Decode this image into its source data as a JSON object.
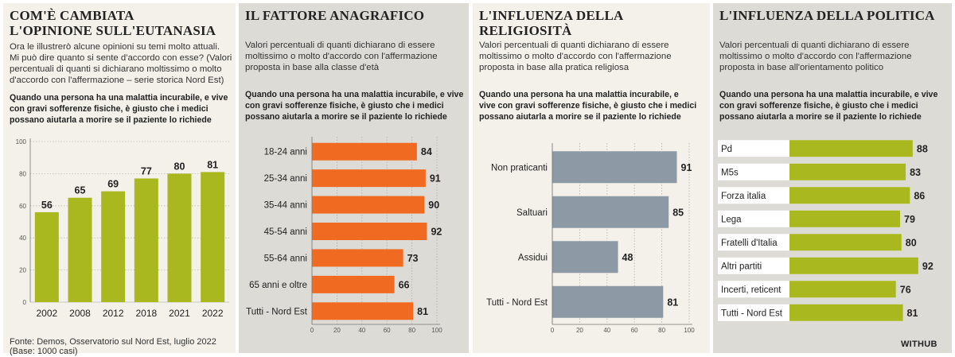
{
  "panel1": {
    "title_line1": "COM'È CAMBIATA",
    "title_line2": "L'OPINIONE SULL'EUTANASIA",
    "intro_line1": "Ora le illustrerò alcune opinioni su temi molto attuali.",
    "intro_line2": "Mi può dire quanto si sente d'accordo con esse? (Valori",
    "intro_line3": "percentuali di quanti si dichiarano moltissimo o molto",
    "intro_line4": "d'accordo con l'affermazione – serie storica Nord Est)",
    "question_line1": "Quando una persona ha una malattia incurabile, e vive",
    "question_line2": "con gravi sofferenze fisiche, è giusto che i medici",
    "question_line3": "possano aiutarla a morire se il paziente lo richiede"
  },
  "panel2": {
    "title": "IL FATTORE ANAGRAFICO",
    "intro_line1": "Valori percentuali di quanti dichiarano di essere",
    "intro_line2": "moltissimo o molto d'accordo con l'affermazione",
    "intro_line3": "proposta in base alla classe d'età",
    "question_line1": "Quando una persona ha una malattia incurabile, e vive",
    "question_line2": "con gravi sofferenze fisiche, è giusto che i medici",
    "question_line3": "possano aiutarla a morire se il paziente lo richiede"
  },
  "panel3": {
    "title": "L'INFLUENZA DELLA RELIGIOSITÀ",
    "intro_line1": "Valori percentuali di quanti dichiarano di essere",
    "intro_line2": "moltissimo o molto d'accordo con l'affermazione",
    "intro_line3": "proposta in base alla pratica religiosa",
    "question_line1": "Quando una persona ha una malattia incurabile, e",
    "question_line2": "vive con gravi sofferenze fisiche, è giusto che i medici",
    "question_line3": "possano aiutarla a morire se il paziente lo richiede"
  },
  "panel4": {
    "title": "L'INFLUENZA DELLA POLITICA",
    "intro_line1": "Valori percentuali di quanti dichiarano di essere",
    "intro_line2": "moltissimo o molto d'accordo con l'affermazione",
    "intro_line3": "proposta in base all'orientamento politico",
    "question_line1": "Quando una persona ha una malattia incurabile, e vive",
    "question_line2": "con gravi sofferenze fisiche, è giusto che i medici",
    "question_line3": "possano aiutarla a morire se il paziente lo richiede"
  },
  "footer": {
    "source": "Fonte: Demos, Osservatorio sul Nord Est, luglio 2022 (Base: 1000 casi)",
    "brand": "WITHUB"
  },
  "colors": {
    "green": "#a9b81e",
    "orange": "#f06b21",
    "slate": "#8d9aa6"
  },
  "chart_data": [
    {
      "type": "bar",
      "orientation": "vertical",
      "categories": [
        "2002",
        "2008",
        "2012",
        "2018",
        "2021",
        "2022"
      ],
      "values": [
        56,
        65,
        69,
        77,
        80,
        81
      ],
      "ylim": [
        0,
        100
      ],
      "yticks": [
        0,
        20,
        40,
        60,
        80,
        100
      ],
      "color": "#a9b81e"
    },
    {
      "type": "bar",
      "orientation": "horizontal",
      "categories": [
        "18-24 anni",
        "25-34 anni",
        "35-44 anni",
        "45-54 anni",
        "55-64 anni",
        "65 anni e oltre",
        "Tutti - Nord Est"
      ],
      "values": [
        84,
        91,
        90,
        92,
        73,
        66,
        81
      ],
      "xlim": [
        0,
        100
      ],
      "xticks": [
        0,
        20,
        40,
        60,
        80,
        100
      ],
      "color": "#f06b21"
    },
    {
      "type": "bar",
      "orientation": "horizontal",
      "categories": [
        "Non praticanti",
        "Saltuari",
        "Assidui",
        "Tutti - Nord Est"
      ],
      "values": [
        91,
        85,
        48,
        81
      ],
      "xlim": [
        0,
        100
      ],
      "xticks": [
        0,
        20,
        40,
        60,
        80,
        100
      ],
      "color": "#8d9aa6"
    },
    {
      "type": "bar",
      "orientation": "horizontal",
      "categories": [
        "Pd",
        "M5s",
        "Forza italia",
        "Lega",
        "Fratelli d'Italia",
        "Altri partiti",
        "Incerti, reticent",
        "Tutti - Nord Est"
      ],
      "values": [
        88,
        83,
        86,
        79,
        80,
        92,
        76,
        81
      ],
      "xlim": [
        0,
        100
      ],
      "color": "#a9b81e"
    }
  ]
}
